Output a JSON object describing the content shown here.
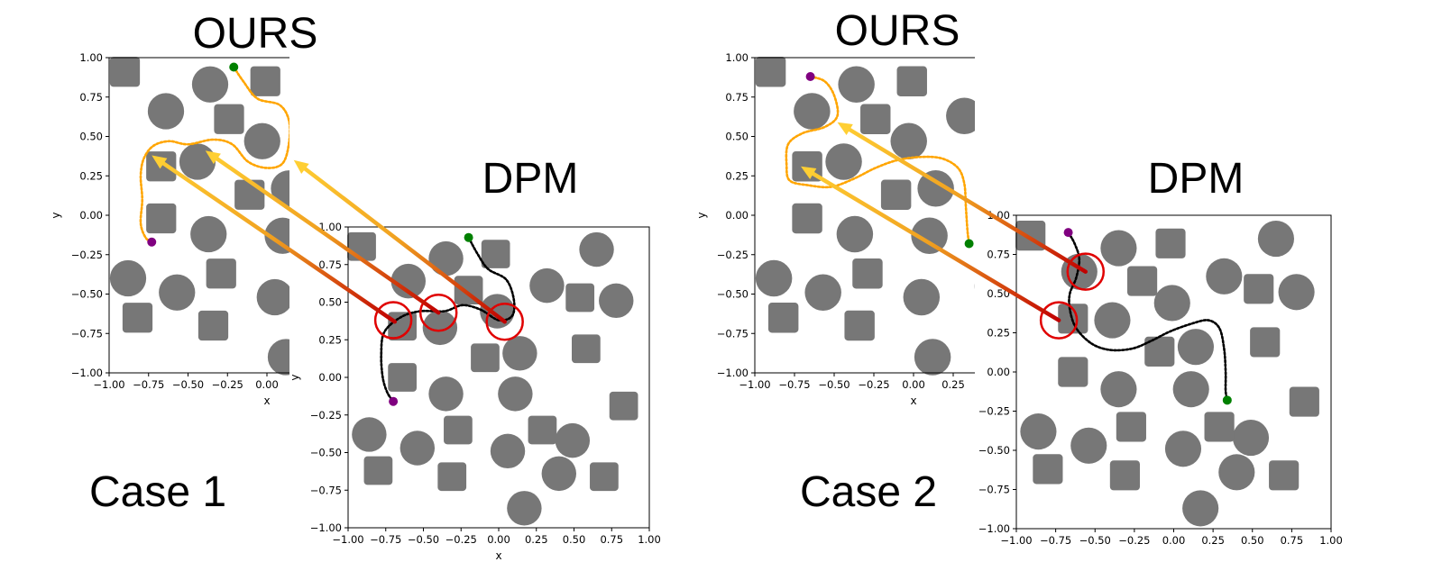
{
  "chart_data": [
    {
      "type": "scatter",
      "case_label": "Case 1",
      "title": "OURS",
      "xlabel": "x",
      "ylabel": "y",
      "xlim": [
        -1,
        1
      ],
      "ylim": [
        -1,
        1
      ],
      "ticks": [
        -1.0,
        -0.75,
        -0.5,
        -0.25,
        0.0,
        0.25,
        0.5,
        0.75,
        1.0
      ],
      "tick_labels": [
        "−1.00",
        "−0.75",
        "−0.50",
        "−0.25",
        "0.00",
        "0.25",
        "0.50",
        "0.75",
        "1.00"
      ],
      "obstacle_color": "#777777",
      "path_color": "#ffa500",
      "start_color": "#008000",
      "goal_color": "#800080",
      "obstacles": [
        {
          "shape": "square",
          "x": -0.9,
          "y": 0.91
        },
        {
          "shape": "circle",
          "x": -0.64,
          "y": 0.66
        },
        {
          "shape": "circle",
          "x": -0.36,
          "y": 0.83
        },
        {
          "shape": "square",
          "x": -0.24,
          "y": 0.61
        },
        {
          "shape": "square",
          "x": -0.01,
          "y": 0.85
        },
        {
          "shape": "circle",
          "x": -0.03,
          "y": 0.47
        },
        {
          "shape": "circle",
          "x": 0.32,
          "y": 0.63
        },
        {
          "shape": "square",
          "x": 0.55,
          "y": 0.55
        },
        {
          "shape": "circle",
          "x": 0.68,
          "y": 0.88
        },
        {
          "shape": "circle",
          "x": 0.8,
          "y": 0.53
        },
        {
          "shape": "square",
          "x": -0.67,
          "y": 0.31
        },
        {
          "shape": "circle",
          "x": -0.44,
          "y": 0.34
        },
        {
          "shape": "square",
          "x": -0.11,
          "y": 0.13
        },
        {
          "shape": "circle",
          "x": 0.14,
          "y": 0.17
        },
        {
          "shape": "square",
          "x": 0.6,
          "y": 0.19
        },
        {
          "shape": "square",
          "x": -0.67,
          "y": -0.02
        },
        {
          "shape": "circle",
          "x": -0.37,
          "y": -0.12
        },
        {
          "shape": "circle",
          "x": 0.1,
          "y": -0.13
        },
        {
          "shape": "circle",
          "x": -0.88,
          "y": -0.4
        },
        {
          "shape": "square",
          "x": -0.29,
          "y": -0.37
        },
        {
          "shape": "circle",
          "x": -0.57,
          "y": -0.49
        },
        {
          "shape": "circle",
          "x": 0.05,
          "y": -0.52
        },
        {
          "shape": "circle",
          "x": 0.5,
          "y": -0.45
        },
        {
          "shape": "square",
          "x": -0.82,
          "y": -0.65
        },
        {
          "shape": "square",
          "x": -0.34,
          "y": -0.7
        },
        {
          "shape": "circle",
          "x": 0.12,
          "y": -0.9
        }
      ],
      "path": [
        [
          -0.21,
          0.94
        ],
        [
          -0.15,
          0.85
        ],
        [
          -0.06,
          0.74
        ],
        [
          0.08,
          0.7
        ],
        [
          0.14,
          0.6
        ],
        [
          0.14,
          0.46
        ],
        [
          0.1,
          0.33
        ],
        [
          0.0,
          0.3
        ],
        [
          -0.12,
          0.34
        ],
        [
          -0.22,
          0.45
        ],
        [
          -0.34,
          0.48
        ],
        [
          -0.5,
          0.45
        ],
        [
          -0.62,
          0.47
        ],
        [
          -0.72,
          0.44
        ],
        [
          -0.78,
          0.36
        ],
        [
          -0.8,
          0.25
        ],
        [
          -0.79,
          0.1
        ],
        [
          -0.8,
          -0.05
        ],
        [
          -0.77,
          -0.14
        ],
        [
          -0.73,
          -0.17
        ]
      ],
      "start": [
        -0.21,
        0.94
      ],
      "goal": [
        -0.73,
        -0.17
      ]
    },
    {
      "type": "scatter",
      "case_label": "Case 1",
      "title": "DPM",
      "xlabel": "x",
      "ylabel": "y",
      "xlim": [
        -1,
        1
      ],
      "ylim": [
        -1,
        1
      ],
      "ticks": [
        -1.0,
        -0.75,
        -0.5,
        -0.25,
        0.0,
        0.25,
        0.5,
        0.75,
        1.0
      ],
      "tick_labels": [
        "−1.00",
        "−0.75",
        "−0.50",
        "−0.25",
        "0.00",
        "0.25",
        "0.50",
        "0.75",
        "1.00"
      ],
      "obstacle_color": "#777777",
      "path_color": "#000000",
      "start_color": "#008000",
      "goal_color": "#800080",
      "obstacles": [
        {
          "shape": "square",
          "x": -0.91,
          "y": 0.87
        },
        {
          "shape": "circle",
          "x": -0.6,
          "y": 0.64
        },
        {
          "shape": "circle",
          "x": -0.35,
          "y": 0.79
        },
        {
          "shape": "square",
          "x": -0.2,
          "y": 0.58
        },
        {
          "shape": "square",
          "x": -0.02,
          "y": 0.82
        },
        {
          "shape": "circle",
          "x": -0.01,
          "y": 0.44
        },
        {
          "shape": "circle",
          "x": 0.32,
          "y": 0.61
        },
        {
          "shape": "square",
          "x": 0.54,
          "y": 0.53
        },
        {
          "shape": "circle",
          "x": 0.65,
          "y": 0.85
        },
        {
          "shape": "circle",
          "x": 0.78,
          "y": 0.51
        },
        {
          "shape": "square",
          "x": -0.64,
          "y": 0.34
        },
        {
          "shape": "circle",
          "x": -0.39,
          "y": 0.33
        },
        {
          "shape": "square",
          "x": -0.09,
          "y": 0.13
        },
        {
          "shape": "circle",
          "x": 0.14,
          "y": 0.16
        },
        {
          "shape": "square",
          "x": 0.58,
          "y": 0.19
        },
        {
          "shape": "square",
          "x": -0.64,
          "y": 0.0
        },
        {
          "shape": "circle",
          "x": -0.35,
          "y": -0.11
        },
        {
          "shape": "circle",
          "x": 0.11,
          "y": -0.11
        },
        {
          "shape": "circle",
          "x": -0.86,
          "y": -0.38
        },
        {
          "shape": "square",
          "x": -0.27,
          "y": -0.35
        },
        {
          "shape": "circle",
          "x": -0.54,
          "y": -0.47
        },
        {
          "shape": "circle",
          "x": 0.06,
          "y": -0.49
        },
        {
          "shape": "circle",
          "x": 0.49,
          "y": -0.42
        },
        {
          "shape": "square",
          "x": -0.8,
          "y": -0.62
        },
        {
          "shape": "square",
          "x": -0.31,
          "y": -0.66
        },
        {
          "shape": "circle",
          "x": 0.4,
          "y": -0.64
        },
        {
          "shape": "square",
          "x": 0.7,
          "y": -0.66
        },
        {
          "shape": "square",
          "x": 0.83,
          "y": -0.19
        },
        {
          "shape": "square",
          "x": 0.29,
          "y": -0.35
        },
        {
          "shape": "circle",
          "x": 0.17,
          "y": -0.87
        }
      ],
      "path": [
        [
          -0.2,
          0.93
        ],
        [
          -0.14,
          0.82
        ],
        [
          -0.07,
          0.72
        ],
        [
          0.05,
          0.65
        ],
        [
          0.1,
          0.52
        ],
        [
          0.09,
          0.41
        ],
        [
          0.0,
          0.38
        ],
        [
          -0.12,
          0.45
        ],
        [
          -0.24,
          0.48
        ],
        [
          -0.36,
          0.44
        ],
        [
          -0.52,
          0.44
        ],
        [
          -0.65,
          0.4
        ],
        [
          -0.76,
          0.3
        ],
        [
          -0.78,
          0.15
        ],
        [
          -0.77,
          0.0
        ],
        [
          -0.74,
          -0.1
        ],
        [
          -0.7,
          -0.16
        ]
      ],
      "start": [
        -0.2,
        0.93
      ],
      "goal": [
        -0.7,
        -0.16
      ],
      "red_circles": [
        [
          -0.7,
          0.38
        ],
        [
          -0.4,
          0.43
        ],
        [
          0.04,
          0.37
        ]
      ]
    },
    {
      "type": "scatter",
      "case_label": "Case 2",
      "title": "OURS",
      "xlabel": "x",
      "ylabel": "y",
      "xlim": [
        -1,
        1
      ],
      "ylim": [
        -1,
        1
      ],
      "ticks": [
        -1.0,
        -0.75,
        -0.5,
        -0.25,
        0.0,
        0.25,
        0.5,
        0.75,
        1.0
      ],
      "tick_labels": [
        "−1.00",
        "−0.75",
        "−0.50",
        "−0.25",
        "0.00",
        "0.25",
        "0.50",
        "0.75",
        "1.00"
      ],
      "obstacle_color": "#777777",
      "path_color": "#ffa500",
      "start_color": "#008000",
      "goal_color": "#800080",
      "obstacles": [
        {
          "shape": "square",
          "x": -0.9,
          "y": 0.91
        },
        {
          "shape": "circle",
          "x": -0.64,
          "y": 0.66
        },
        {
          "shape": "circle",
          "x": -0.36,
          "y": 0.83
        },
        {
          "shape": "square",
          "x": -0.24,
          "y": 0.61
        },
        {
          "shape": "square",
          "x": -0.01,
          "y": 0.85
        },
        {
          "shape": "circle",
          "x": -0.03,
          "y": 0.47
        },
        {
          "shape": "circle",
          "x": 0.32,
          "y": 0.63
        },
        {
          "shape": "square",
          "x": 0.55,
          "y": 0.55
        },
        {
          "shape": "circle",
          "x": 0.68,
          "y": 0.88
        },
        {
          "shape": "circle",
          "x": 0.8,
          "y": 0.53
        },
        {
          "shape": "square",
          "x": -0.67,
          "y": 0.31
        },
        {
          "shape": "circle",
          "x": -0.44,
          "y": 0.34
        },
        {
          "shape": "square",
          "x": -0.11,
          "y": 0.13
        },
        {
          "shape": "circle",
          "x": 0.14,
          "y": 0.17
        },
        {
          "shape": "square",
          "x": 0.6,
          "y": 0.19
        },
        {
          "shape": "square",
          "x": -0.67,
          "y": -0.02
        },
        {
          "shape": "circle",
          "x": -0.37,
          "y": -0.12
        },
        {
          "shape": "circle",
          "x": 0.1,
          "y": -0.13
        },
        {
          "shape": "circle",
          "x": -0.88,
          "y": -0.4
        },
        {
          "shape": "square",
          "x": -0.29,
          "y": -0.37
        },
        {
          "shape": "circle",
          "x": -0.57,
          "y": -0.49
        },
        {
          "shape": "circle",
          "x": 0.05,
          "y": -0.52
        },
        {
          "shape": "circle",
          "x": 0.5,
          "y": -0.45
        },
        {
          "shape": "square",
          "x": -0.82,
          "y": -0.65
        },
        {
          "shape": "square",
          "x": -0.34,
          "y": -0.7
        },
        {
          "shape": "circle",
          "x": 0.12,
          "y": -0.9
        }
      ],
      "path": [
        [
          -0.65,
          0.88
        ],
        [
          -0.56,
          0.85
        ],
        [
          -0.5,
          0.76
        ],
        [
          -0.48,
          0.63
        ],
        [
          -0.56,
          0.56
        ],
        [
          -0.7,
          0.52
        ],
        [
          -0.79,
          0.45
        ],
        [
          -0.8,
          0.32
        ],
        [
          -0.78,
          0.22
        ],
        [
          -0.66,
          0.19
        ],
        [
          -0.52,
          0.18
        ],
        [
          -0.38,
          0.23
        ],
        [
          -0.24,
          0.3
        ],
        [
          -0.1,
          0.35
        ],
        [
          0.05,
          0.37
        ],
        [
          0.18,
          0.36
        ],
        [
          0.28,
          0.3
        ],
        [
          0.32,
          0.2
        ],
        [
          0.33,
          0.05
        ],
        [
          0.34,
          -0.1
        ],
        [
          0.35,
          -0.18
        ]
      ],
      "start": [
        0.35,
        -0.18
      ],
      "goal": [
        -0.65,
        0.88
      ]
    },
    {
      "type": "scatter",
      "case_label": "Case 2",
      "title": "DPM",
      "xlabel": "",
      "ylabel": "",
      "xlim": [
        -1,
        1
      ],
      "ylim": [
        -1,
        1
      ],
      "ticks": [
        -1.0,
        -0.75,
        -0.5,
        -0.25,
        0.0,
        0.25,
        0.5,
        0.75,
        1.0
      ],
      "tick_labels": [
        "−1.00",
        "−0.75",
        "−0.50",
        "−0.25",
        "0.00",
        "0.25",
        "0.50",
        "0.75",
        "1.00"
      ],
      "obstacle_color": "#777777",
      "path_color": "#000000",
      "start_color": "#008000",
      "goal_color": "#800080",
      "obstacles": [
        {
          "shape": "square",
          "x": -0.91,
          "y": 0.87
        },
        {
          "shape": "circle",
          "x": -0.6,
          "y": 0.64
        },
        {
          "shape": "circle",
          "x": -0.35,
          "y": 0.79
        },
        {
          "shape": "square",
          "x": -0.2,
          "y": 0.58
        },
        {
          "shape": "square",
          "x": -0.02,
          "y": 0.82
        },
        {
          "shape": "circle",
          "x": -0.01,
          "y": 0.44
        },
        {
          "shape": "circle",
          "x": 0.32,
          "y": 0.61
        },
        {
          "shape": "square",
          "x": 0.54,
          "y": 0.53
        },
        {
          "shape": "circle",
          "x": 0.65,
          "y": 0.85
        },
        {
          "shape": "circle",
          "x": 0.78,
          "y": 0.51
        },
        {
          "shape": "square",
          "x": -0.64,
          "y": 0.34
        },
        {
          "shape": "circle",
          "x": -0.39,
          "y": 0.33
        },
        {
          "shape": "square",
          "x": -0.09,
          "y": 0.13
        },
        {
          "shape": "circle",
          "x": 0.14,
          "y": 0.16
        },
        {
          "shape": "square",
          "x": 0.58,
          "y": 0.19
        },
        {
          "shape": "square",
          "x": -0.64,
          "y": 0.0
        },
        {
          "shape": "circle",
          "x": -0.35,
          "y": -0.11
        },
        {
          "shape": "circle",
          "x": 0.11,
          "y": -0.11
        },
        {
          "shape": "circle",
          "x": -0.86,
          "y": -0.38
        },
        {
          "shape": "square",
          "x": -0.27,
          "y": -0.35
        },
        {
          "shape": "circle",
          "x": -0.54,
          "y": -0.47
        },
        {
          "shape": "circle",
          "x": 0.06,
          "y": -0.49
        },
        {
          "shape": "circle",
          "x": 0.49,
          "y": -0.42
        },
        {
          "shape": "square",
          "x": -0.8,
          "y": -0.62
        },
        {
          "shape": "square",
          "x": -0.31,
          "y": -0.66
        },
        {
          "shape": "circle",
          "x": 0.4,
          "y": -0.64
        },
        {
          "shape": "square",
          "x": 0.7,
          "y": -0.66
        },
        {
          "shape": "square",
          "x": 0.83,
          "y": -0.19
        },
        {
          "shape": "square",
          "x": 0.29,
          "y": -0.35
        },
        {
          "shape": "circle",
          "x": 0.17,
          "y": -0.87
        }
      ],
      "path": [
        [
          -0.67,
          0.89
        ],
        [
          -0.63,
          0.82
        ],
        [
          -0.6,
          0.72
        ],
        [
          -0.62,
          0.6
        ],
        [
          -0.66,
          0.5
        ],
        [
          -0.66,
          0.4
        ],
        [
          -0.62,
          0.28
        ],
        [
          -0.52,
          0.18
        ],
        [
          -0.4,
          0.14
        ],
        [
          -0.26,
          0.15
        ],
        [
          -0.14,
          0.2
        ],
        [
          -0.02,
          0.26
        ],
        [
          0.12,
          0.31
        ],
        [
          0.22,
          0.33
        ],
        [
          0.29,
          0.28
        ],
        [
          0.32,
          0.15
        ],
        [
          0.33,
          0.0
        ],
        [
          0.33,
          -0.12
        ],
        [
          0.34,
          -0.18
        ]
      ],
      "start": [
        0.34,
        -0.18
      ],
      "goal": [
        -0.67,
        0.89
      ],
      "red_circles": [
        [
          -0.56,
          0.64
        ],
        [
          -0.73,
          0.33
        ]
      ]
    }
  ],
  "arrows": {
    "case1": [
      {
        "from": [
          -0.69,
          0.37
        ],
        "to": [
          -0.73,
          0.38
        ]
      },
      {
        "from": [
          -0.4,
          0.43
        ],
        "to": [
          -0.39,
          0.41
        ]
      },
      {
        "from": [
          0.04,
          0.37
        ],
        "to": [
          0.17,
          0.35
        ]
      }
    ],
    "case2": [
      {
        "from": [
          -0.56,
          0.64
        ],
        "to": [
          -0.48,
          0.59
        ]
      },
      {
        "from": [
          -0.73,
          0.33
        ],
        "to": [
          -0.71,
          0.31
        ]
      }
    ]
  },
  "labels": {
    "case1_ours_title": "OURS",
    "case1_dpm_title": "DPM",
    "case1_label": "Case 1",
    "case2_ours_title": "OURS",
    "case2_dpm_title": "DPM",
    "case2_label": "Case 2"
  }
}
